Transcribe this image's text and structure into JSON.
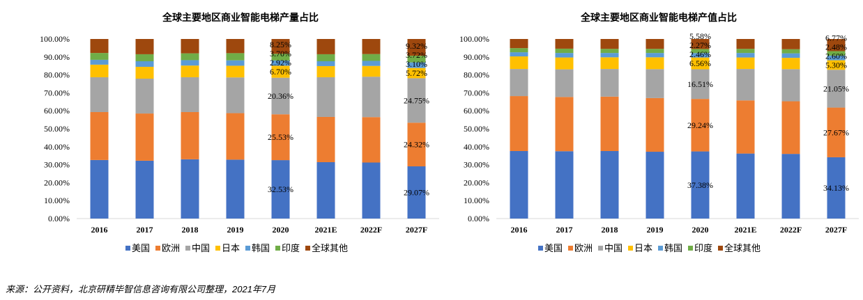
{
  "source_note": "来源：公开资料，北京研精毕智信息咨询有限公司整理，2021年7月",
  "legend": [
    "美国",
    "欧洲",
    "中国",
    "日本",
    "韩国",
    "印度",
    "全球其他"
  ],
  "colors": [
    "#4472C4",
    "#ED7D31",
    "#A5A5A5",
    "#FFC000",
    "#5B9BD5",
    "#70AD47",
    "#9E480E"
  ],
  "chart_data": [
    {
      "type": "bar",
      "stacked": true,
      "title": "全球主要地区商业智能电梯产量占比",
      "categories": [
        "2016",
        "2017",
        "2018",
        "2019",
        "2020",
        "2021E",
        "2022F",
        "2027F"
      ],
      "ylim": [
        0,
        100
      ],
      "yticks": [
        "0.00%",
        "10.00%",
        "20.00%",
        "30.00%",
        "40.00%",
        "50.00%",
        "60.00%",
        "70.00%",
        "80.00%",
        "90.00%",
        "100.00%"
      ],
      "legend_position": "bottom",
      "grid": false,
      "series": [
        {
          "name": "美国",
          "values": [
            32.6,
            32.2,
            33.0,
            32.8,
            32.53,
            31.4,
            31.2,
            29.07
          ]
        },
        {
          "name": "欧洲",
          "values": [
            26.7,
            26.3,
            26.3,
            25.9,
            25.53,
            25.2,
            25.3,
            24.32
          ]
        },
        {
          "name": "中国",
          "values": [
            19.4,
            19.4,
            19.4,
            19.9,
            20.36,
            22.1,
            22.5,
            24.75
          ]
        },
        {
          "name": "日本",
          "values": [
            7.0,
            6.6,
            6.5,
            6.5,
            6.7,
            6.2,
            6.0,
            5.72
          ]
        },
        {
          "name": "韩国",
          "values": [
            2.7,
            3.1,
            3.0,
            3.0,
            2.92,
            2.7,
            2.8,
            3.1
          ]
        },
        {
          "name": "印度",
          "values": [
            3.8,
            3.9,
            3.8,
            4.0,
            3.7,
            3.9,
            3.8,
            3.72
          ]
        },
        {
          "name": "全球其他",
          "values": [
            7.8,
            8.5,
            8.0,
            7.9,
            8.25,
            8.5,
            8.4,
            9.32
          ]
        }
      ],
      "data_labels": {
        "2020": [
          "32.53%",
          "25.53%",
          "20.36%",
          "6.70%",
          "2.92%",
          "3.70%",
          "8.25%"
        ],
        "2027F": [
          "29.07%",
          "24.32%",
          "24.75%",
          "5.72%",
          "3.10%",
          "3.72%",
          "9.32%"
        ]
      }
    },
    {
      "type": "bar",
      "stacked": true,
      "title": "全球主要地区商业智能电梯产值占比",
      "categories": [
        "2016",
        "2017",
        "2018",
        "2019",
        "2020",
        "2021E",
        "2022F",
        "2027F"
      ],
      "ylim": [
        0,
        100
      ],
      "yticks": [
        "0.00%",
        "10.00%",
        "20.00%",
        "30.00%",
        "40.00%",
        "50.00%",
        "60.00%",
        "70.00%",
        "80.00%",
        "90.00%",
        "100.00%"
      ],
      "legend_position": "bottom",
      "grid": false,
      "series": [
        {
          "name": "美国",
          "values": [
            37.6,
            37.5,
            37.6,
            37.2,
            37.38,
            36.2,
            36.0,
            34.13
          ]
        },
        {
          "name": "欧洲",
          "values": [
            30.6,
            30.2,
            30.3,
            29.9,
            29.24,
            29.6,
            29.3,
            27.67
          ]
        },
        {
          "name": "中国",
          "values": [
            15.1,
            15.4,
            15.4,
            16.1,
            16.51,
            17.5,
            17.9,
            21.05
          ]
        },
        {
          "name": "日本",
          "values": [
            7.0,
            6.6,
            6.5,
            6.6,
            6.56,
            6.4,
            6.3,
            5.3
          ]
        },
        {
          "name": "韩国",
          "values": [
            2.3,
            2.5,
            2.4,
            2.4,
            2.46,
            2.5,
            2.5,
            2.6
          ]
        },
        {
          "name": "印度",
          "values": [
            2.3,
            2.4,
            2.3,
            2.3,
            2.27,
            2.3,
            2.3,
            2.48
          ]
        },
        {
          "name": "全球其他",
          "values": [
            5.1,
            5.4,
            5.5,
            5.5,
            5.58,
            5.5,
            5.7,
            6.77
          ]
        }
      ],
      "data_labels": {
        "2020": [
          "37.38%",
          "29.24%",
          "16.51%",
          "6.56%",
          "2.46%",
          "2.27%",
          "5.58%"
        ],
        "2027F": [
          "34.13%",
          "27.67%",
          "21.05%",
          "5.30%",
          "2.60%",
          "2.48%",
          "6.77%"
        ]
      }
    }
  ]
}
